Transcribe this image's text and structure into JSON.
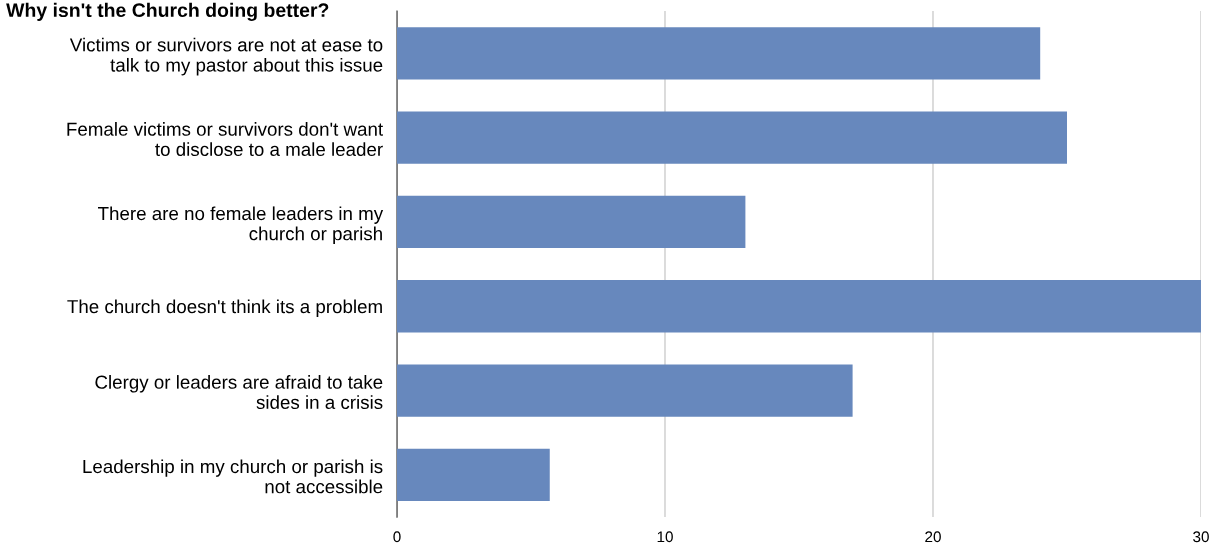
{
  "chart_data": {
    "type": "bar",
    "orientation": "horizontal",
    "title": "Why isn't the Church doing better?",
    "categories": [
      "Victims or survivors are not at ease to\ntalk to my pastor about this issue",
      "Female victims or survivors don't want\nto disclose to a male leader",
      "There are no female leaders in my\nchurch or parish",
      "The church doesn't think its a problem",
      "Clergy or leaders are afraid to take\nsides in a crisis",
      "Leadership in my church or parish is\nnot accessible"
    ],
    "values": [
      24,
      25,
      13,
      30,
      17,
      5.7
    ],
    "color": "#6788bd",
    "xlim": [
      0,
      30
    ],
    "xticks": [
      0,
      10,
      20,
      30
    ],
    "grid": "x",
    "legend": false
  }
}
